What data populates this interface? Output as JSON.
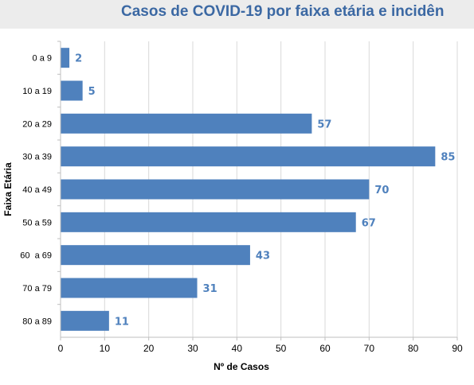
{
  "chart_data": {
    "type": "bar",
    "orientation": "horizontal",
    "title": "Casos de COVID-19 por faixa etária e incidên",
    "xlabel": "Nº de Casos",
    "ylabel": "Faixa Etária",
    "categories": [
      "0 a 9",
      "10 a 19",
      "20 a 29",
      "30 a 39",
      "40 a 49",
      "50 a 59",
      "60  a 69",
      "70 a 79",
      "80 a 89"
    ],
    "values": [
      2,
      5,
      57,
      85,
      70,
      67,
      43,
      31,
      11
    ],
    "xlim": [
      0,
      90
    ],
    "xticks": [
      0,
      10,
      20,
      30,
      40,
      50,
      60,
      70,
      80,
      90
    ],
    "grid": true,
    "data_labels": true,
    "colors": {
      "bar": "#4f81bd",
      "label": "#4f81bd",
      "grid": "#d9d9d9",
      "title": "#3b68a3",
      "title_band": "#ececec"
    }
  }
}
